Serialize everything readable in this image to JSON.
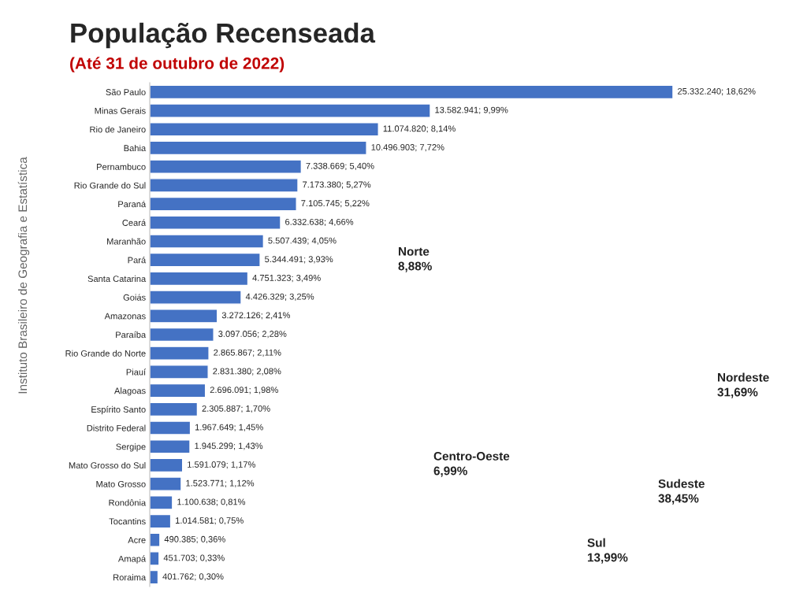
{
  "chart_data": {
    "type": "bar",
    "orientation": "horizontal",
    "title": "População Recenseada",
    "subtitle": "(Até 31 de outubro de 2022)",
    "categories": [
      "São Paulo",
      "Minas Gerais",
      "Rio de Janeiro",
      "Bahia",
      "Pernambuco",
      "Rio Grande do Sul",
      "Paraná",
      "Ceará",
      "Maranhão",
      "Pará",
      "Santa Catarina",
      "Goiás",
      "Amazonas",
      "Paraíba",
      "Rio Grande do Norte",
      "Piauí",
      "Alagoas",
      "Espírito Santo",
      "Distrito Federal",
      "Sergipe",
      "Mato Grosso do Sul",
      "Mato Grosso",
      "Rondônia",
      "Tocantins",
      "Acre",
      "Amapá",
      "Roraima"
    ],
    "values": [
      25332240,
      13582941,
      11074820,
      10496903,
      7338669,
      7173380,
      7105745,
      6332638,
      5507439,
      5344491,
      4751323,
      4426329,
      3272126,
      3097056,
      2865867,
      2831380,
      2696091,
      2305887,
      1967649,
      1945299,
      1591079,
      1523771,
      1100638,
      1014581,
      490385,
      451703,
      401762
    ],
    "value_labels": [
      "25.332.240; 18,62%",
      "13.582.941; 9,99%",
      "11.074.820; 8,14%",
      "10.496.903; 7,72%",
      "7.338.669; 5,40%",
      "7.173.380; 5,27%",
      "7.105.745; 5,22%",
      "6.332.638; 4,66%",
      "5.507.439; 4,05%",
      "5.344.491; 3,93%",
      "4.751.323; 3,49%",
      "4.426.329; 3,25%",
      "3.272.126; 2,41%",
      "3.097.056; 2,28%",
      "2.865.867; 2,11%",
      "2.831.380; 2,08%",
      "2.696.091; 1,98%",
      "2.305.887; 1,70%",
      "1.967.649; 1,45%",
      "1.945.299; 1,43%",
      "1.591.079; 1,17%",
      "1.523.771; 1,12%",
      "1.100.638; 0,81%",
      "1.014.581; 0,75%",
      "490.385; 0,36%",
      "451.703; 0,33%",
      "401.762; 0,30%"
    ],
    "color": "#4472c4",
    "tick_labels": "y",
    "grid": false,
    "annotations": [
      "Norte\n8,88%",
      "Nordeste\n31,69%",
      "Centro-Oeste\n6,99%",
      "Sudeste\n38,45%",
      "Sul\n13,99%",
      "Instituto Brasileiro de Geografia e Estatística"
    ]
  }
}
